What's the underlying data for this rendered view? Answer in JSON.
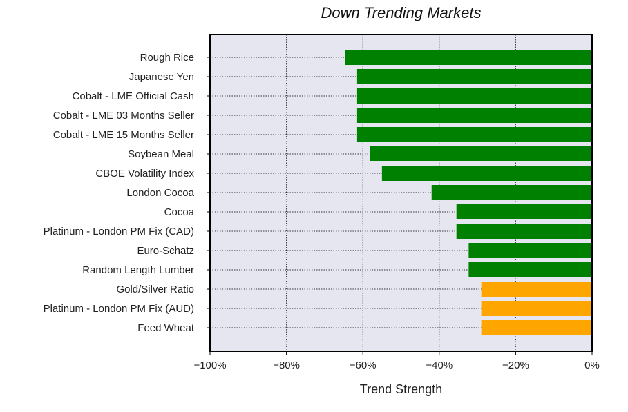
{
  "chart_data": {
    "type": "bar",
    "orientation": "horizontal",
    "title": "Down Trending Markets",
    "xlabel": "Trend Strength",
    "ylabel": "",
    "xlim": [
      -100,
      0
    ],
    "x_ticks": [
      "−100%",
      "−80%",
      "−60%",
      "−40%",
      "−20%",
      "0%"
    ],
    "grid": true,
    "categories": [
      "Rough Rice",
      "Japanese Yen",
      "Cobalt - LME Official Cash",
      "Cobalt - LME 03 Months Seller",
      "Cobalt - LME 15 Months Seller",
      "Soybean Meal",
      "CBOE Volatility Index",
      "London Cocoa",
      "Cocoa",
      "Platinum - London PM Fix (CAD)",
      "Euro-Schatz",
      "Random Length Lumber",
      "Gold/Silver Ratio",
      "Platinum - London PM Fix (AUD)",
      "Feed Wheat"
    ],
    "values": [
      -64.6,
      -61.5,
      -61.5,
      -61.5,
      -61.5,
      -58.1,
      -55.0,
      -42.0,
      -35.5,
      -35.5,
      -32.3,
      -32.3,
      -29.0,
      -29.0,
      -29.0
    ],
    "bar_colors": [
      "#008000",
      "#008000",
      "#008000",
      "#008000",
      "#008000",
      "#008000",
      "#008000",
      "#008000",
      "#008000",
      "#008000",
      "#008000",
      "#008000",
      "#FFA500",
      "#FFA500",
      "#FFA500"
    ],
    "plot_background": "#E6E6F0"
  }
}
